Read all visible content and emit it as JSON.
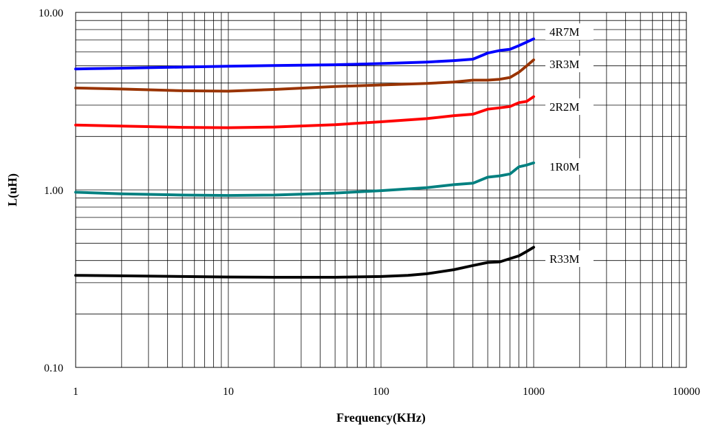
{
  "chart_data": {
    "type": "line",
    "xscale": "log",
    "yscale": "log",
    "xlim": [
      1,
      10000
    ],
    "ylim": [
      0.1,
      10
    ],
    "xticks": [
      "1",
      "10",
      "100",
      "1000",
      "10000"
    ],
    "yticks": [
      "0.10",
      "1.00",
      "10.00"
    ],
    "xlabel": "Frequency(KHz)",
    "ylabel": "L(uH)",
    "grid": true,
    "series": [
      {
        "name": "4R7M",
        "color": "#0000ff",
        "x": [
          1,
          2,
          5,
          10,
          20,
          50,
          100,
          200,
          300,
          400,
          500,
          600,
          700,
          800,
          900,
          1000
        ],
        "y": [
          4.8,
          4.85,
          4.92,
          4.97,
          5.02,
          5.07,
          5.15,
          5.25,
          5.35,
          5.45,
          5.9,
          6.1,
          6.2,
          6.5,
          6.8,
          7.1
        ]
      },
      {
        "name": "3R3M",
        "color": "#993300",
        "x": [
          1,
          2,
          5,
          10,
          20,
          50,
          100,
          200,
          300,
          400,
          500,
          600,
          700,
          800,
          900,
          1000
        ],
        "y": [
          3.75,
          3.7,
          3.62,
          3.6,
          3.68,
          3.82,
          3.9,
          3.98,
          4.05,
          4.15,
          4.15,
          4.2,
          4.3,
          4.6,
          5.0,
          5.4
        ]
      },
      {
        "name": "2R2M",
        "color": "#ff0000",
        "x": [
          1,
          2,
          5,
          10,
          20,
          50,
          100,
          200,
          300,
          400,
          500,
          600,
          700,
          800,
          900,
          1000
        ],
        "y": [
          2.32,
          2.29,
          2.25,
          2.24,
          2.26,
          2.33,
          2.42,
          2.52,
          2.62,
          2.67,
          2.85,
          2.9,
          2.95,
          3.1,
          3.15,
          3.35
        ]
      },
      {
        "name": "1R0M",
        "color": "#008080",
        "x": [
          1,
          2,
          5,
          10,
          20,
          50,
          100,
          200,
          300,
          400,
          500,
          600,
          700,
          800,
          900,
          1000
        ],
        "y": [
          0.97,
          0.95,
          0.935,
          0.93,
          0.935,
          0.96,
          0.99,
          1.03,
          1.07,
          1.09,
          1.18,
          1.2,
          1.23,
          1.35,
          1.38,
          1.42
        ]
      },
      {
        "name": "R33M",
        "color": "#000000",
        "x": [
          1,
          2,
          5,
          10,
          20,
          50,
          100,
          150,
          200,
          300,
          400,
          500,
          600,
          700,
          800,
          900,
          1000
        ],
        "y": [
          0.33,
          0.328,
          0.325,
          0.323,
          0.322,
          0.322,
          0.325,
          0.33,
          0.337,
          0.355,
          0.375,
          0.39,
          0.393,
          0.41,
          0.425,
          0.45,
          0.475
        ]
      }
    ]
  }
}
